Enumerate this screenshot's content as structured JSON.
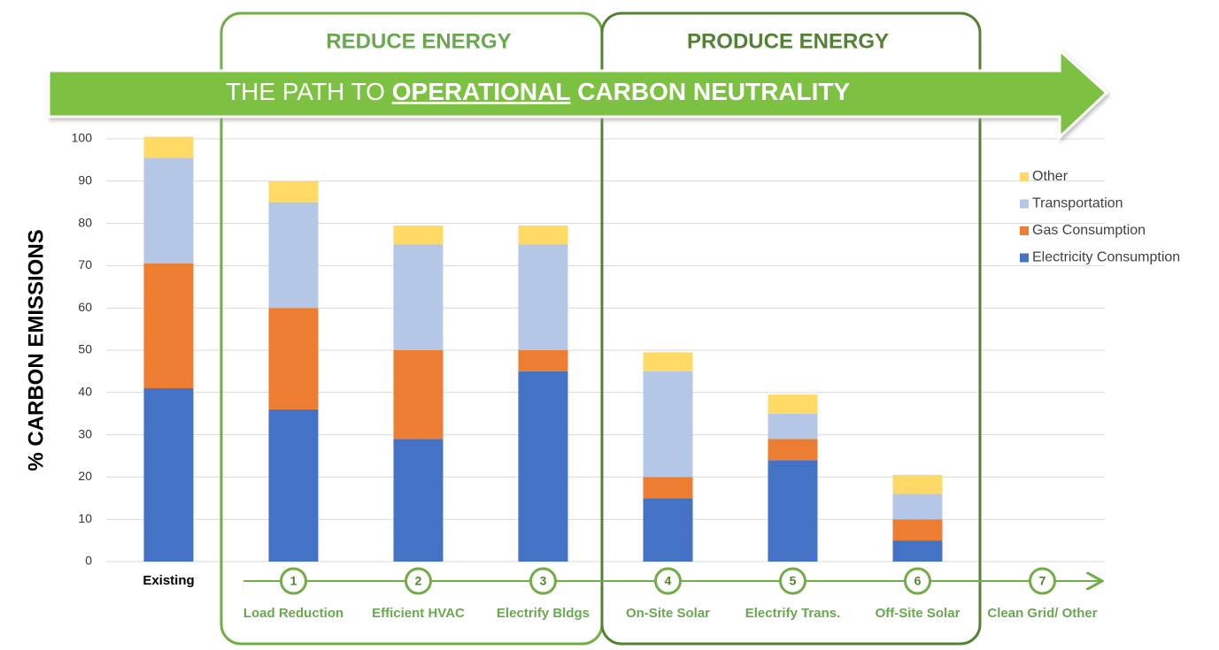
{
  "chart_data": {
    "type": "stacked_bar",
    "headers": [
      "REDUCE ENERGY",
      "PRODUCE ENERGY"
    ],
    "banner": {
      "prefix": "THE PATH TO",
      "emphasis": "OPERATIONAL",
      "suffix": "CARBON NEUTRALITY"
    },
    "y_label": "% CARBON EMISSIONS",
    "categories": [
      "Existing",
      "Load Reduction",
      "Efficient  HVAC",
      "Electrify Bldgs",
      "On-Site  Solar",
      "Electrify Trans.",
      "Off-Site Solar",
      "Clean Grid/ Other"
    ],
    "steps": [
      "1",
      "2",
      "3",
      "4",
      "5",
      "6",
      "7"
    ],
    "series": [
      {
        "name": "Electricity Consumption",
        "color": "#4472c4",
        "values": [
          41,
          36,
          29,
          45,
          15,
          24,
          5,
          null
        ]
      },
      {
        "name": "Gas Consumption",
        "color": "#ed7d31",
        "values": [
          29.5,
          24,
          21,
          5,
          5,
          5,
          5,
          null
        ]
      },
      {
        "name": "Transportation",
        "color": "#b4c7e7",
        "values": [
          25,
          25,
          25,
          25,
          25,
          6,
          6,
          null
        ]
      },
      {
        "name": "Other",
        "color": "#ffd966",
        "values": [
          5,
          5,
          4.5,
          4.5,
          4.5,
          4.5,
          4.5,
          null
        ]
      }
    ],
    "ylim": [
      0,
      100
    ],
    "yticks": [
      0,
      10,
      20,
      30,
      40,
      50,
      60,
      70,
      80,
      90,
      100
    ],
    "grid": true,
    "legend": "right"
  }
}
